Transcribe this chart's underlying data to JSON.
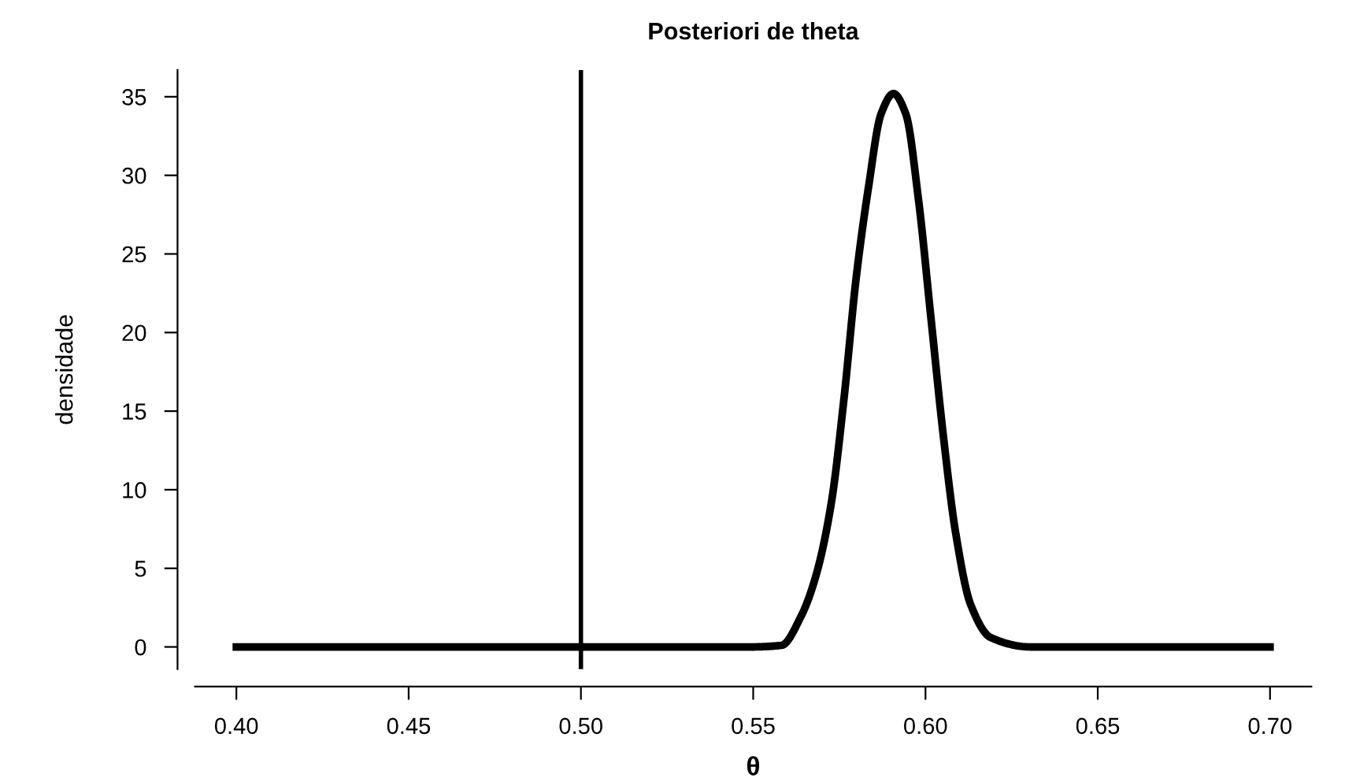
{
  "chart_data": {
    "type": "line",
    "title": "Posteriori de theta",
    "xlabel": "θ",
    "ylabel": "densidade",
    "xlim": [
      0.388,
      0.712
    ],
    "ylim": [
      -1.41,
      36.7
    ],
    "xticks": [
      {
        "value": 0.4,
        "label": "0.40"
      },
      {
        "value": 0.45,
        "label": "0.45"
      },
      {
        "value": 0.5,
        "label": "0.50"
      },
      {
        "value": 0.55,
        "label": "0.55"
      },
      {
        "value": 0.6,
        "label": "0.60"
      },
      {
        "value": 0.65,
        "label": "0.65"
      },
      {
        "value": 0.7,
        "label": "0.70"
      }
    ],
    "yticks": [
      0,
      5,
      10,
      15,
      20,
      25,
      30,
      35
    ],
    "grid": false,
    "legend": false,
    "marker": "none",
    "line_style": "solid",
    "ref_lines": [
      {
        "axis": "x",
        "value": 0.5,
        "color": "#000000",
        "line_style": "solid"
      }
    ],
    "series": [
      {
        "color": "#000000",
        "x": [
          0.4,
          0.54,
          0.5495,
          0.5582,
          0.564,
          0.5683,
          0.5727,
          0.5763,
          0.5799,
          0.5835,
          0.5871,
          0.5907,
          0.5943,
          0.598,
          0.6016,
          0.6052,
          0.6088,
          0.6131,
          0.6189,
          0.6305,
          0.7
        ],
        "values": [
          0,
          0,
          0,
          0.1,
          2,
          4.6,
          9.2,
          15.7,
          23.5,
          29.3,
          33.9,
          35.2,
          33.9,
          28.4,
          20.9,
          13.4,
          7.2,
          2.7,
          0.6,
          0,
          0
        ]
      }
    ]
  }
}
